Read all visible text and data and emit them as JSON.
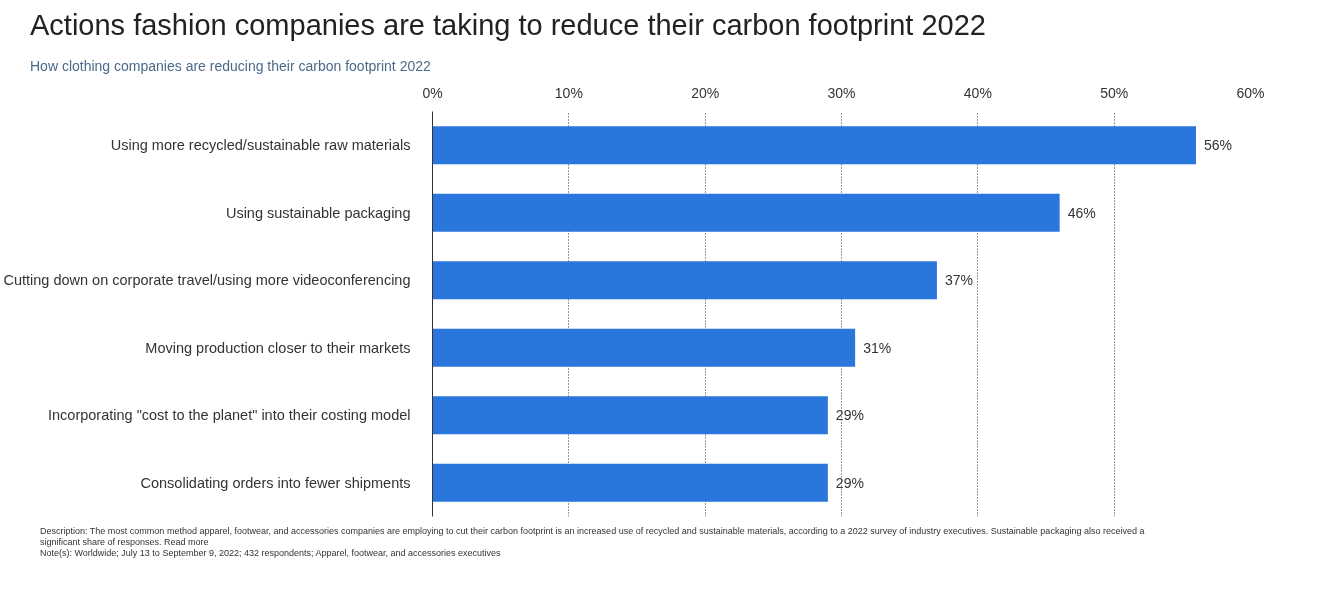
{
  "chart_data": {
    "type": "bar",
    "orientation": "horizontal",
    "title": "Actions fashion companies are taking to reduce their carbon footprint 2022",
    "subtitle": "How clothing companies are reducing their carbon footprint 2022",
    "categories": [
      "Using more recycled/sustainable raw materials",
      "Using sustainable packaging",
      "Cutting down on corporate travel/using more videoconferencing",
      "Moving production closer to their markets",
      "Incorporating \"cost to the planet\" into their costing model",
      "Consolidating orders into fewer shipments"
    ],
    "values": [
      56,
      46,
      37,
      31,
      29,
      29
    ],
    "color": "#2a76dd",
    "value_labels": [
      "56%",
      "46%",
      "37%",
      "31%",
      "29%",
      "29%"
    ],
    "xlim": [
      0,
      60
    ],
    "xticks": [
      {
        "value": 0,
        "label": "0%"
      },
      {
        "value": 10,
        "label": "10%"
      },
      {
        "value": 20,
        "label": "20%"
      },
      {
        "value": 30,
        "label": "30%"
      },
      {
        "value": 40,
        "label": "40%"
      },
      {
        "value": 50,
        "label": "50%"
      },
      {
        "value": 60,
        "label": "60%"
      }
    ],
    "grid": "x",
    "annotations": [
      "Description: The most common method apparel, footwear, and accessories companies are employing to cut their carbon footprint is an increased use of recycled and sustainable materials, according to a 2022 survey of industry executives. Sustainable packaging also received a significant share of responses. Read more",
      "Note(s): Worldwide; July 13 to September 9, 2022; 432 respondents; Apparel, footwear, and accessories executives"
    ]
  }
}
